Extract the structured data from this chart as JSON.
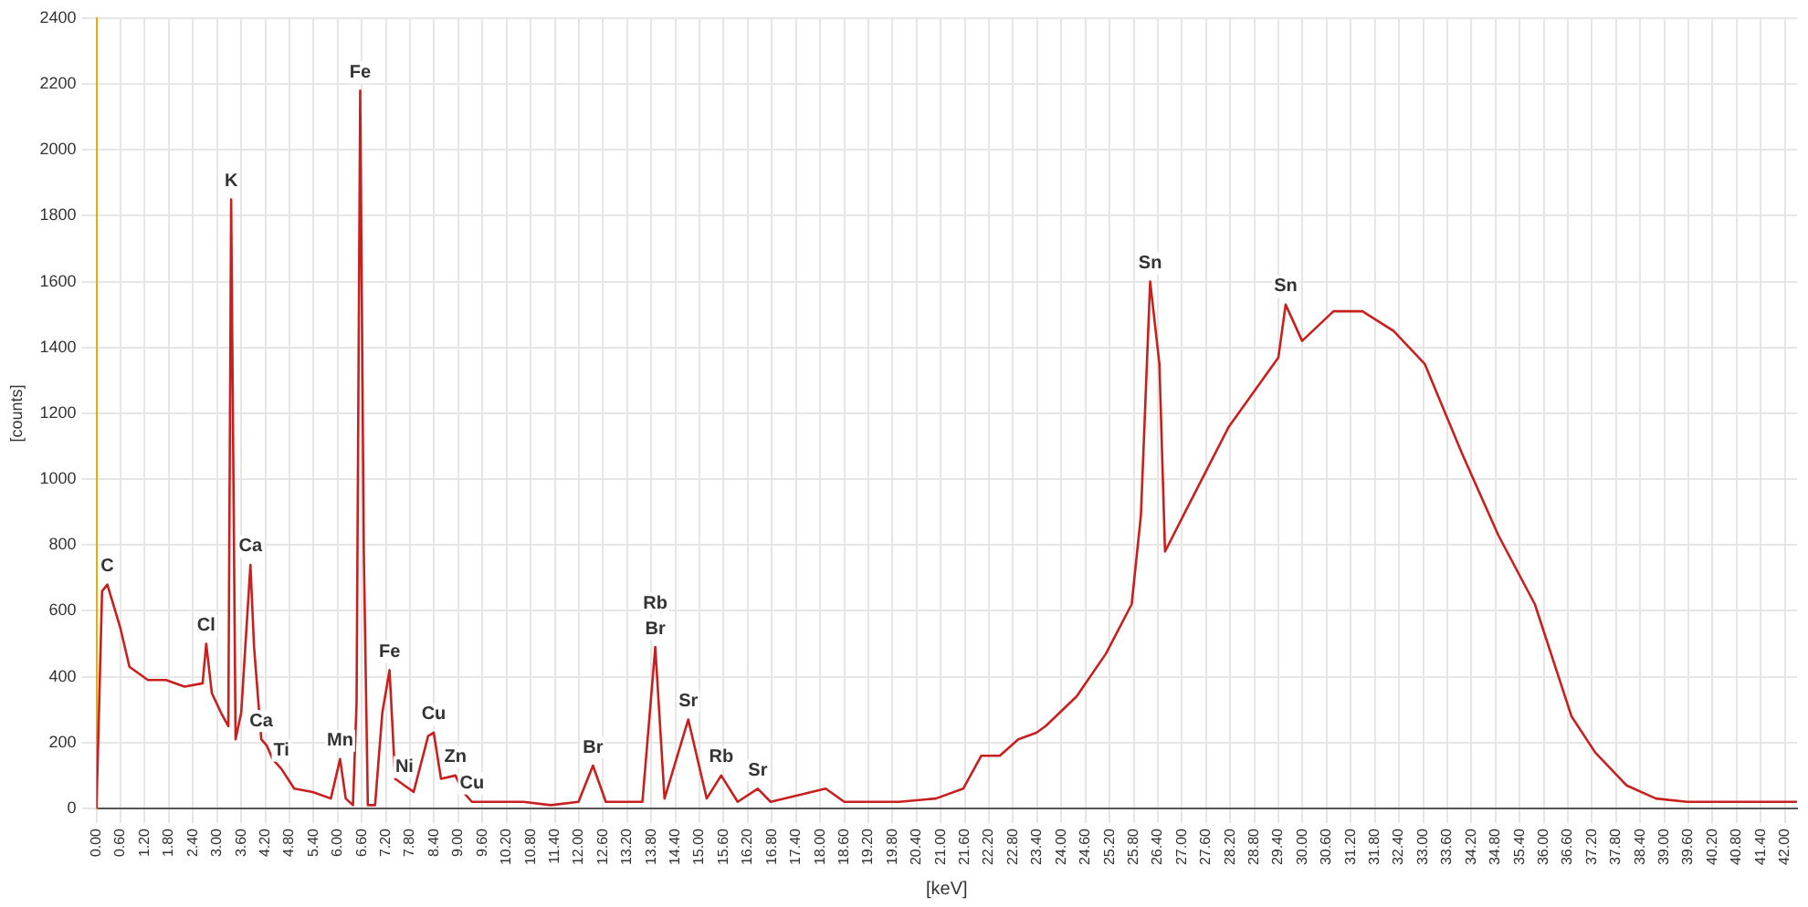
{
  "chart_data": {
    "type": "line",
    "xlabel": "[keV]",
    "ylabel": "[counts]",
    "xlim": [
      0,
      42.3
    ],
    "xticks": [
      {
        "value": 0,
        "label": "0.00"
      },
      {
        "value": 0.6,
        "label": "0.60"
      },
      {
        "value": 1.2,
        "label": "1.20"
      },
      {
        "value": 1.8,
        "label": "1.80"
      },
      {
        "value": 2.4,
        "label": "2.40"
      },
      {
        "value": 3,
        "label": "3.00"
      },
      {
        "value": 3.6,
        "label": "3.60"
      },
      {
        "value": 4.2,
        "label": "4.20"
      },
      {
        "value": 4.8,
        "label": "4.80"
      },
      {
        "value": 5.4,
        "label": "5.40"
      },
      {
        "value": 6,
        "label": "6.00"
      },
      {
        "value": 6.6,
        "label": "6.60"
      },
      {
        "value": 7.2,
        "label": "7.20"
      },
      {
        "value": 7.8,
        "label": "7.80"
      },
      {
        "value": 8.4,
        "label": "8.40"
      },
      {
        "value": 9,
        "label": "9.00"
      },
      {
        "value": 9.6,
        "label": "9.60"
      },
      {
        "value": 10.2,
        "label": "10.20"
      },
      {
        "value": 10.8,
        "label": "10.80"
      },
      {
        "value": 11.4,
        "label": "11.40"
      },
      {
        "value": 12,
        "label": "12.00"
      },
      {
        "value": 12.6,
        "label": "12.60"
      },
      {
        "value": 13.2,
        "label": "13.20"
      },
      {
        "value": 13.8,
        "label": "13.80"
      },
      {
        "value": 14.4,
        "label": "14.40"
      },
      {
        "value": 15,
        "label": "15.00"
      },
      {
        "value": 15.6,
        "label": "15.60"
      },
      {
        "value": 16.2,
        "label": "16.20"
      },
      {
        "value": 16.8,
        "label": "16.80"
      },
      {
        "value": 17.4,
        "label": "17.40"
      },
      {
        "value": 18,
        "label": "18.00"
      },
      {
        "value": 18.6,
        "label": "18.60"
      },
      {
        "value": 19.2,
        "label": "19.20"
      },
      {
        "value": 19.8,
        "label": "19.80"
      },
      {
        "value": 20.4,
        "label": "20.40"
      },
      {
        "value": 21,
        "label": "21.00"
      },
      {
        "value": 21.6,
        "label": "21.60"
      },
      {
        "value": 22.2,
        "label": "22.20"
      },
      {
        "value": 22.8,
        "label": "22.80"
      },
      {
        "value": 23.4,
        "label": "23.40"
      },
      {
        "value": 24,
        "label": "24.00"
      },
      {
        "value": 24.6,
        "label": "24.60"
      },
      {
        "value": 25.2,
        "label": "25.20"
      },
      {
        "value": 25.8,
        "label": "25.80"
      },
      {
        "value": 26.4,
        "label": "26.40"
      },
      {
        "value": 27,
        "label": "27.00"
      },
      {
        "value": 27.6,
        "label": "27.60"
      },
      {
        "value": 28.2,
        "label": "28.20"
      },
      {
        "value": 28.8,
        "label": "28.80"
      },
      {
        "value": 29.4,
        "label": "29.40"
      },
      {
        "value": 30,
        "label": "30.00"
      },
      {
        "value": 30.6,
        "label": "30.60"
      },
      {
        "value": 31.2,
        "label": "31.20"
      },
      {
        "value": 31.8,
        "label": "31.80"
      },
      {
        "value": 32.4,
        "label": "32.40"
      },
      {
        "value": 33,
        "label": "33.00"
      },
      {
        "value": 33.6,
        "label": "33.60"
      },
      {
        "value": 34.2,
        "label": "34.20"
      },
      {
        "value": 34.8,
        "label": "34.80"
      },
      {
        "value": 35.4,
        "label": "35.40"
      },
      {
        "value": 36,
        "label": "36.00"
      },
      {
        "value": 36.6,
        "label": "36.60"
      },
      {
        "value": 37.2,
        "label": "37.20"
      },
      {
        "value": 37.8,
        "label": "37.80"
      },
      {
        "value": 38.4,
        "label": "38.40"
      },
      {
        "value": 39,
        "label": "39.00"
      },
      {
        "value": 39.6,
        "label": "39.60"
      },
      {
        "value": 40.2,
        "label": "40.20"
      },
      {
        "value": 40.8,
        "label": "40.80"
      },
      {
        "value": 41.4,
        "label": "41.40"
      },
      {
        "value": 42,
        "label": "42.00"
      }
    ],
    "ylim": [
      0,
      2400
    ],
    "yticks": [
      0,
      200,
      400,
      600,
      800,
      1000,
      1200,
      1400,
      1600,
      1800,
      2000,
      2200,
      2400
    ],
    "grid": true,
    "legend": false,
    "marker": "none",
    "line_style": "solid",
    "series": [
      {
        "color": "#c8201e",
        "x": [
          0,
          0.14,
          0.27,
          0.59,
          0.82,
          1.28,
          1.73,
          2.19,
          2.64,
          2.73,
          2.87,
          3.1,
          3.28,
          3.35,
          3.46,
          3.6,
          3.83,
          3.92,
          4.1,
          4.24,
          4.38,
          4.6,
          4.92,
          5.38,
          5.83,
          6.06,
          6.2,
          6.38,
          6.47,
          6.56,
          6.65,
          6.75,
          6.93,
          7.11,
          7.29,
          7.43,
          7.66,
          7.89,
          8.25,
          8.39,
          8.57,
          8.93,
          9.12,
          9.34,
          9.94,
          10.62,
          11.3,
          11.99,
          12.35,
          12.67,
          13.58,
          13.9,
          14.13,
          14.72,
          15.18,
          15.54,
          15.95,
          16.45,
          16.77,
          18.14,
          18.6,
          19.96,
          20.88,
          21.56,
          22.01,
          22.47,
          22.93,
          23.38,
          23.61,
          24.38,
          25.11,
          25.75,
          25.98,
          26.21,
          26.44,
          26.58,
          27.12,
          28.17,
          29.4,
          29.58,
          29.99,
          30.77,
          31.49,
          32.27,
          33.04,
          33.96,
          34.87,
          35.78,
          36.69,
          37.28,
          38.06,
          38.79,
          39.56,
          42.3
        ],
        "values": [
          0,
          660,
          680,
          550,
          430,
          390,
          390,
          370,
          380,
          500,
          350,
          290,
          250,
          1850,
          210,
          290,
          740,
          490,
          210,
          190,
          150,
          120,
          60,
          50,
          30,
          150,
          30,
          10,
          320,
          2180,
          780,
          10,
          10,
          290,
          420,
          90,
          70,
          50,
          220,
          230,
          90,
          100,
          50,
          20,
          20,
          20,
          10,
          20,
          130,
          20,
          20,
          490,
          30,
          270,
          30,
          100,
          20,
          60,
          20,
          60,
          20,
          20,
          30,
          60,
          160,
          160,
          210,
          230,
          250,
          340,
          470,
          620,
          890,
          1600,
          1350,
          780,
          910,
          1160,
          1370,
          1530,
          1420,
          1510,
          1510,
          1450,
          1350,
          1080,
          830,
          620,
          280,
          170,
          70,
          30,
          20,
          20
        ]
      }
    ],
    "annotations": [
      {
        "text": "C",
        "x": 0.27,
        "y": 680
      },
      {
        "text": "Cl",
        "x": 2.73,
        "y": 500
      },
      {
        "text": "K",
        "x": 3.35,
        "y": 1850
      },
      {
        "text": "Ca",
        "x": 3.83,
        "y": 740
      },
      {
        "text": "Ca",
        "x": 4.1,
        "y": 210
      },
      {
        "text": "Ti",
        "x": 4.6,
        "y": 120
      },
      {
        "text": "Mn",
        "x": 6.06,
        "y": 150
      },
      {
        "text": "Fe",
        "x": 6.56,
        "y": 2180
      },
      {
        "text": "Fe",
        "x": 7.29,
        "y": 420
      },
      {
        "text": "Ni",
        "x": 7.66,
        "y": 70
      },
      {
        "text": "Cu",
        "x": 8.39,
        "y": 230
      },
      {
        "text": "Zn",
        "x": 8.93,
        "y": 100
      },
      {
        "text": "Cu",
        "x": 9.34,
        "y": 20
      },
      {
        "text": "Br",
        "x": 12.35,
        "y": 130
      },
      {
        "text": "Rb",
        "x": 13.9,
        "y": 490
      },
      {
        "text": "Br",
        "x": 13.9,
        "y": 490
      },
      {
        "text": "Sr",
        "x": 14.72,
        "y": 270
      },
      {
        "text": "Rb",
        "x": 15.54,
        "y": 100
      },
      {
        "text": "Sr",
        "x": 16.45,
        "y": 60
      },
      {
        "text": "Sn",
        "x": 26.21,
        "y": 1600
      },
      {
        "text": "Sn",
        "x": 29.58,
        "y": 1530
      }
    ]
  }
}
